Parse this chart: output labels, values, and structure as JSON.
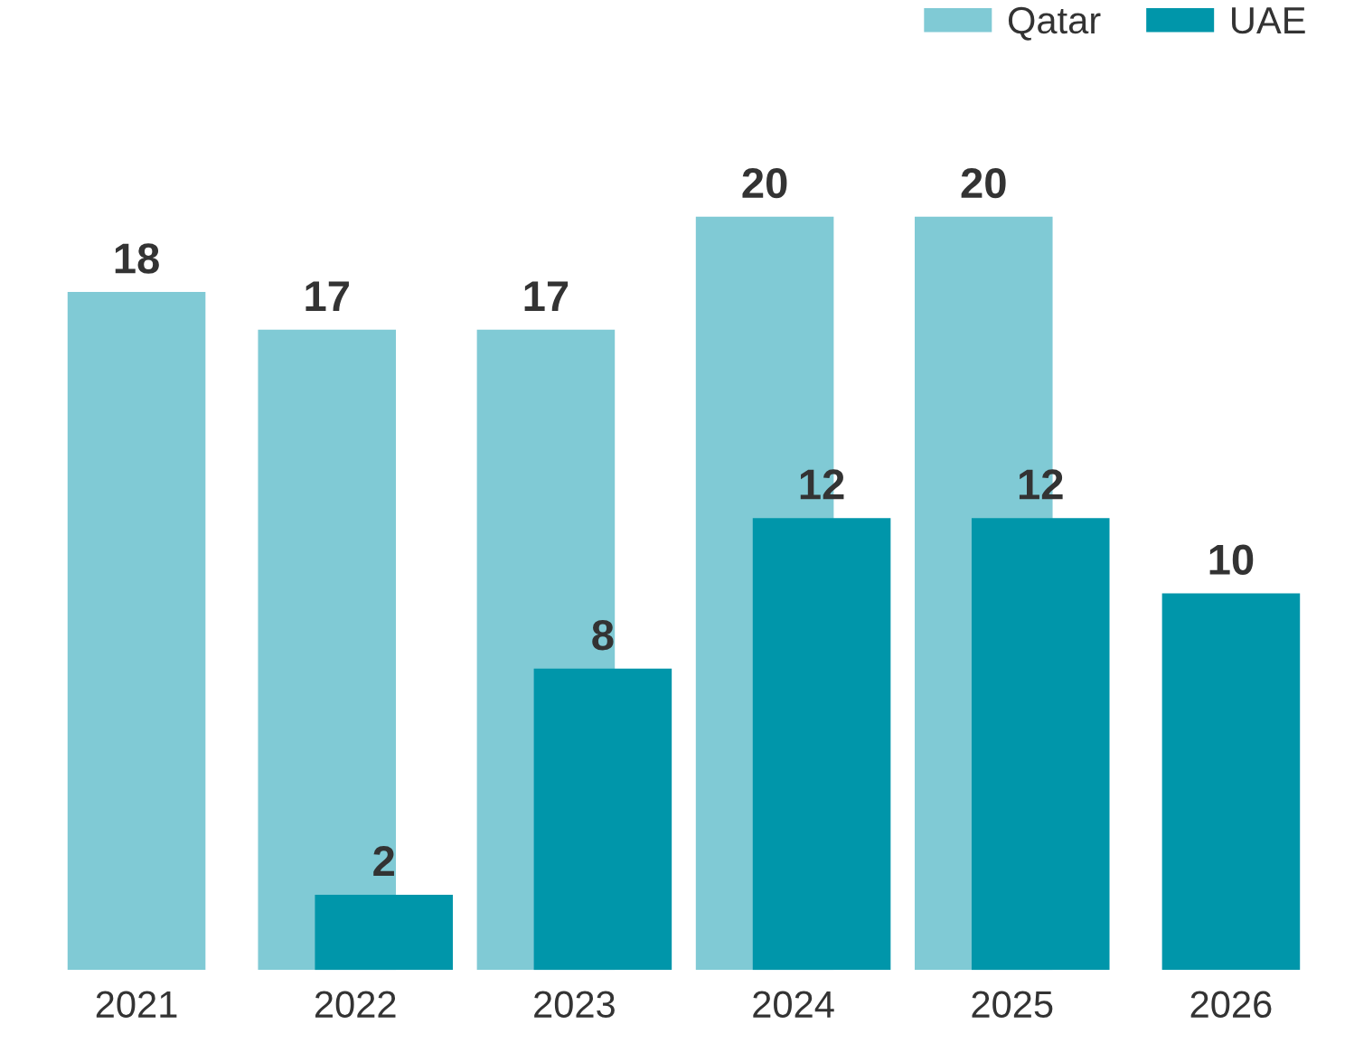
{
  "chart_data": {
    "type": "bar",
    "categories": [
      "2021",
      "2022",
      "2023",
      "2024",
      "2025",
      "2026"
    ],
    "series": [
      {
        "name": "Qatar",
        "color": "#80cad5",
        "values": [
          18,
          17,
          17,
          20,
          20,
          null
        ]
      },
      {
        "name": "UAE",
        "color": "#0096aa",
        "values": [
          null,
          2,
          8,
          12,
          12,
          10
        ]
      }
    ],
    "data_labels": true,
    "legend": "top right",
    "grid": false
  }
}
